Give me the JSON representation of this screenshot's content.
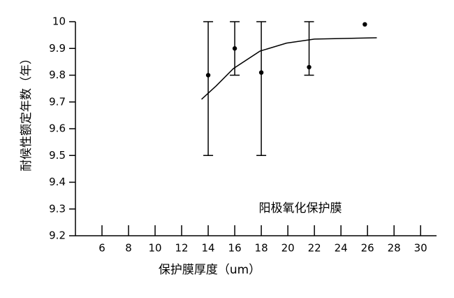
{
  "chart_data": {
    "type": "scatter",
    "y_label": "耐候性额定年数（年）",
    "x_label": "保护膜厚度（um）",
    "annotation": "阳极氧化保护膜",
    "xlim": [
      4,
      31.2
    ],
    "xticks": [
      6,
      8,
      10,
      12,
      14,
      16,
      18,
      20,
      22,
      24,
      26,
      28,
      30
    ],
    "ylim": [
      9.2,
      10
    ],
    "yticks": [
      9.2,
      9.3,
      9.4,
      9.5,
      9.6,
      9.7,
      9.8,
      9.9,
      10
    ],
    "series": [
      {
        "kind": "points",
        "color": "#000000",
        "x": [
          14,
          16,
          18,
          21.6,
          25.8
        ],
        "values": [
          9.8,
          9.9,
          9.81,
          9.83,
          9.99
        ],
        "yerr_upper": [
          10,
          10,
          10,
          10,
          null
        ],
        "yerr_lower": [
          9.5,
          9.8,
          9.5,
          9.8,
          null
        ]
      },
      {
        "kind": "line",
        "color": "#000000",
        "x": [
          13.5,
          14.6,
          15.9,
          17.9,
          19.9,
          22,
          26.7
        ],
        "values": [
          9.71,
          9.76,
          9.825,
          9.89,
          9.92,
          9.935,
          9.94
        ]
      }
    ]
  }
}
